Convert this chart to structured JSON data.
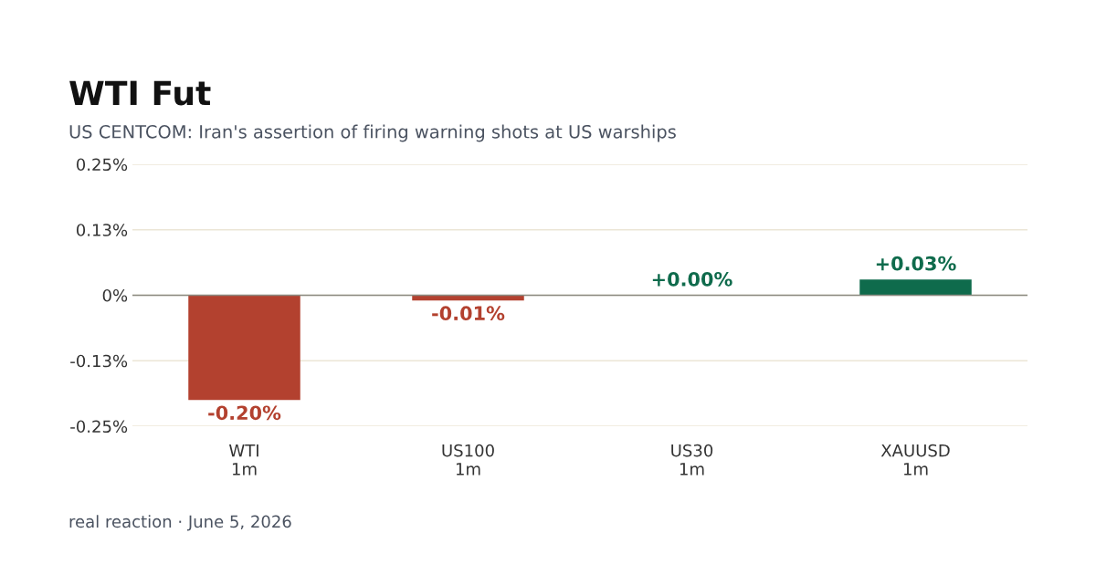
{
  "chart_data": {
    "type": "bar",
    "title": "WTI Fut",
    "subtitle": "US CENTCOM: Iran's assertion of firing warning shots at US warships",
    "categories": [
      "WTI\n1m",
      "US100\n1m",
      "US30\n1m",
      "XAUUSD\n1m"
    ],
    "values": [
      -0.2,
      -0.01,
      0.0,
      0.03
    ],
    "colors": [
      "#b3412f",
      "#b3412f",
      "#0f6b4c",
      "#0f6b4c"
    ],
    "value_labels": [
      "-0.20%",
      "-0.01%",
      "+0.00%",
      "+0.03%"
    ],
    "ylim": [
      -0.25,
      0.25
    ],
    "yticks": [
      {
        "value": -0.25,
        "label": "-0.25%"
      },
      {
        "value": -0.125,
        "label": "-0.13%"
      },
      {
        "value": 0,
        "label": "0%"
      },
      {
        "value": 0.125,
        "label": "0.13%"
      },
      {
        "value": 0.25,
        "label": "0.25%"
      }
    ],
    "grid": "y",
    "annotations": [
      "real reaction · June 5, 2026"
    ]
  }
}
